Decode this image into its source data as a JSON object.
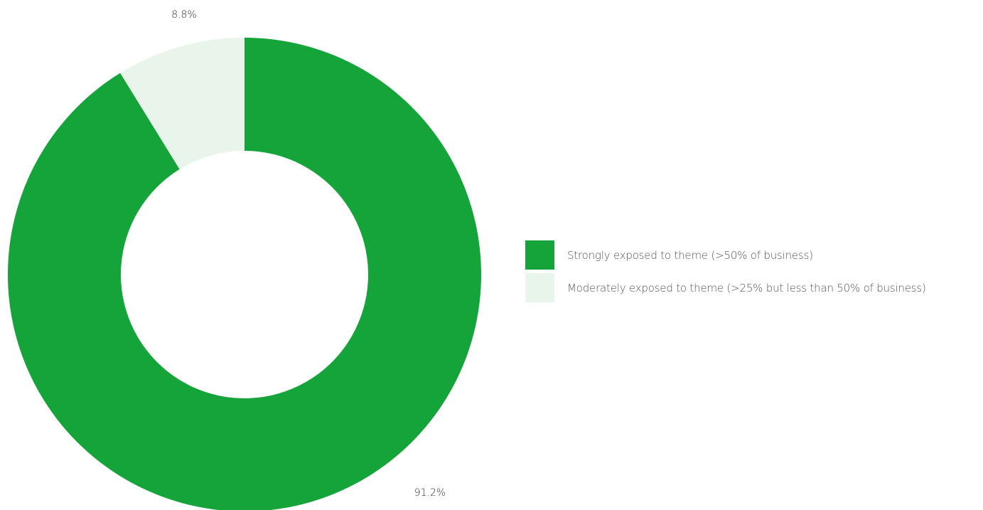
{
  "chart_data": {
    "type": "pie",
    "donut": true,
    "title": "",
    "series": [
      {
        "name": "Strongly exposed to theme (>50% of business)",
        "value": 91.2,
        "label": "91.2%",
        "color": "#15a43a"
      },
      {
        "name": "Moderately exposed to theme (>25% but less than 50% of business)",
        "value": 8.8,
        "label": "8.8%",
        "color": "#e9f4ea"
      }
    ],
    "start_angle": "top",
    "direction": "clockwise",
    "legend_placement": "right"
  }
}
